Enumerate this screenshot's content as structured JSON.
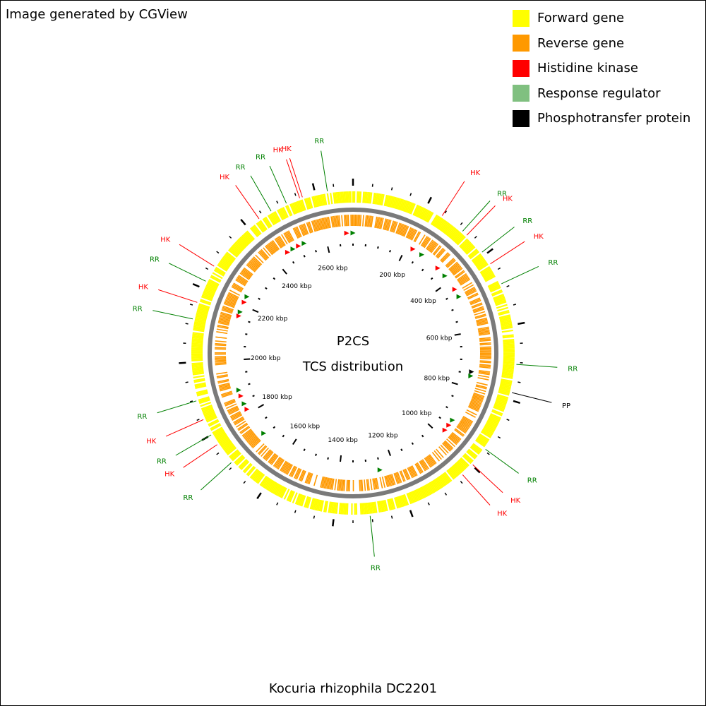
{
  "credit": "Image generated by CGView",
  "footer": "Kocuria rhizophila DC2201",
  "center_title": "P2CS",
  "center_subtitle": "TCS distribution",
  "legend": [
    {
      "label": "Forward gene",
      "color": "#ffff00"
    },
    {
      "label": "Reverse gene",
      "color": "#ff9900"
    },
    {
      "label": "Histidine kinase",
      "color": "#ff0000"
    },
    {
      "label": "Response regulator",
      "color": "#80c080"
    },
    {
      "label": "Phosphotransfer protein",
      "color": "#000000"
    }
  ],
  "ruler_labels": [
    "200 kbp",
    "400 kbp",
    "600 kbp",
    "800 kbp",
    "1000 kbp",
    "1200 kbp",
    "1400 kbp",
    "1600 kbp",
    "1800 kbp",
    "2000 kbp",
    "2200 kbp",
    "2400 kbp",
    "2600 kbp"
  ],
  "genome_length_kbp": 2700,
  "feature_labels": [
    {
      "text": "HK",
      "type": "HK",
      "angle": -18
    },
    {
      "text": "RR",
      "type": "RR",
      "angle": -9
    },
    {
      "text": "HK",
      "type": "HK",
      "angle": 33
    },
    {
      "text": "RR",
      "type": "RR",
      "angle": 42
    },
    {
      "text": "HK",
      "type": "HK",
      "angle": 44
    },
    {
      "text": "RR",
      "type": "RR",
      "angle": 52
    },
    {
      "text": "HK",
      "type": "HK",
      "angle": 57
    },
    {
      "text": "RR",
      "type": "RR",
      "angle": 65
    },
    {
      "text": "RR",
      "type": "RR",
      "angle": 94
    },
    {
      "text": "PP",
      "type": "PP",
      "angle": 104
    },
    {
      "text": "RR",
      "type": "RR",
      "angle": 126
    },
    {
      "text": "HK",
      "type": "HK",
      "angle": 133
    },
    {
      "text": "HK",
      "type": "HK",
      "angle": 138
    },
    {
      "text": "RR",
      "type": "RR",
      "angle": 174
    },
    {
      "text": "RR",
      "type": "RR",
      "angle": 228
    },
    {
      "text": "HK",
      "type": "HK",
      "angle": 236
    },
    {
      "text": "RR",
      "type": "RR",
      "angle": 240
    },
    {
      "text": "HK",
      "type": "HK",
      "angle": 246
    },
    {
      "text": "RR",
      "type": "RR",
      "angle": 253
    },
    {
      "text": "RR",
      "type": "RR",
      "angle": 282
    },
    {
      "text": "HK",
      "type": "HK",
      "angle": 288
    },
    {
      "text": "RR",
      "type": "RR",
      "angle": 296
    },
    {
      "text": "HK",
      "type": "HK",
      "angle": 302
    },
    {
      "text": "HK",
      "type": "HK",
      "angle": 325
    },
    {
      "text": "RR",
      "type": "RR",
      "angle": 330
    },
    {
      "text": "RR",
      "type": "RR",
      "angle": 336
    },
    {
      "text": "HK",
      "type": "HK",
      "angle": 341
    }
  ],
  "inner_markers": [
    {
      "type": "HK",
      "angle": -3
    },
    {
      "type": "RR",
      "angle": 0
    },
    {
      "type": "HK",
      "angle": 30
    },
    {
      "type": "RR",
      "angle": 35
    },
    {
      "type": "HK",
      "angle": 45
    },
    {
      "type": "RR",
      "angle": 50
    },
    {
      "type": "HK",
      "angle": 58
    },
    {
      "type": "RR",
      "angle": 62
    },
    {
      "type": "PP",
      "angle": 99
    },
    {
      "type": "RR",
      "angle": 101
    },
    {
      "type": "RR",
      "angle": 124
    },
    {
      "type": "HK",
      "angle": 127
    },
    {
      "type": "HK",
      "angle": 130
    },
    {
      "type": "RR",
      "angle": 167
    },
    {
      "type": "RR",
      "angle": 228
    },
    {
      "type": "HK",
      "angle": 242
    },
    {
      "type": "RR",
      "angle": 245
    },
    {
      "type": "HK",
      "angle": 249
    },
    {
      "type": "RR",
      "angle": 252
    },
    {
      "type": "HK",
      "angle": 288
    },
    {
      "type": "RR",
      "angle": 290
    },
    {
      "type": "HK",
      "angle": 295
    },
    {
      "type": "RR",
      "angle": 298
    },
    {
      "type": "HK",
      "angle": 327
    },
    {
      "type": "RR",
      "angle": 330
    },
    {
      "type": "HK",
      "angle": 333
    },
    {
      "type": "RR",
      "angle": 336
    }
  ]
}
